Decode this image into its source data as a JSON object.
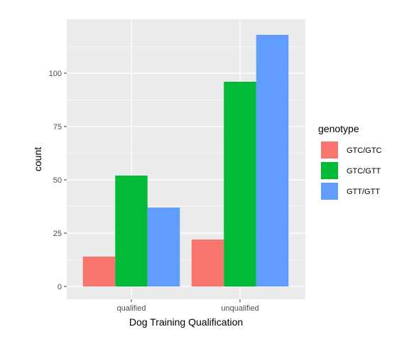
{
  "chart_data": {
    "type": "bar",
    "xlabel": "Dog Training Qualification",
    "ylabel": "count",
    "categories": [
      "qualified",
      "unqualified"
    ],
    "series": [
      {
        "name": "GTC/GTC",
        "color": "#F8766D",
        "values": [
          14,
          22
        ]
      },
      {
        "name": "GTC/GTT",
        "color": "#00BA38",
        "values": [
          52,
          96
        ]
      },
      {
        "name": "GTT/GTT",
        "color": "#619CFF",
        "values": [
          37,
          118
        ]
      }
    ],
    "ylim": [
      0,
      118
    ],
    "yticks": [
      0,
      25,
      50,
      75,
      100
    ],
    "ytick_labels": [
      "0",
      "25",
      "50",
      "75",
      "100"
    ],
    "legend_title": "genotype",
    "legend_position": "right",
    "grid": true,
    "panel_background": "#EBEBEB",
    "gridline_color": "#FFFFFF"
  }
}
